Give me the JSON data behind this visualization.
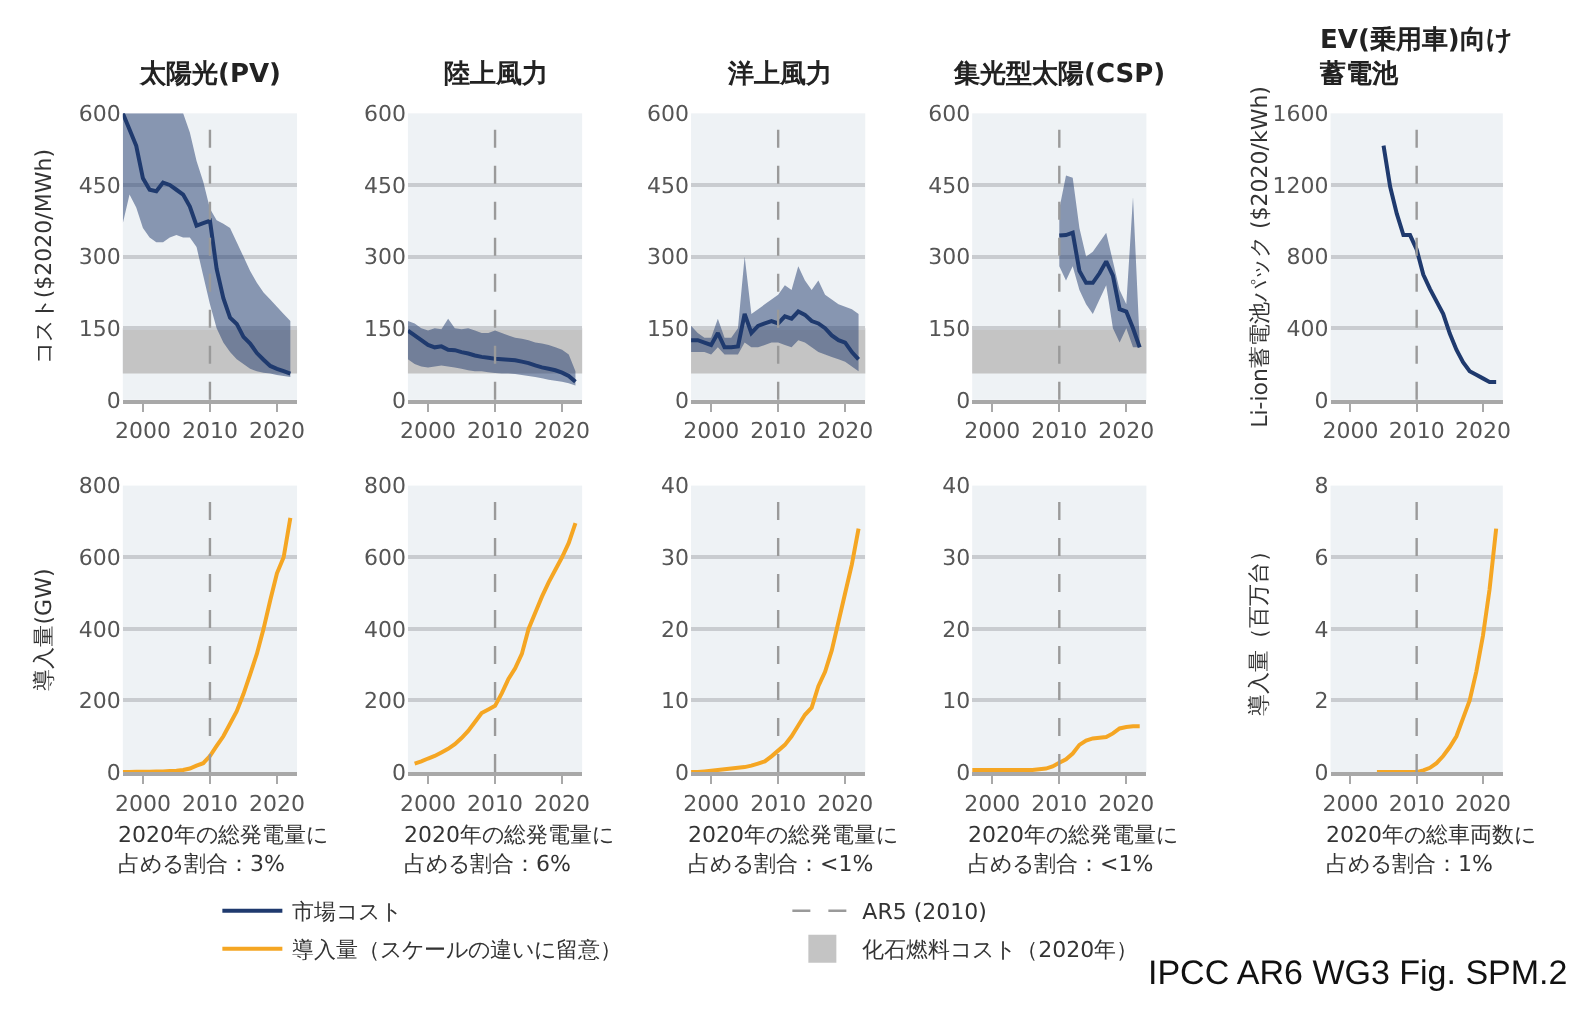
{
  "chart_data": [
    {
      "type": "line",
      "title": "太陽光(PV)",
      "ylabel": "コスト($2020/MWh)",
      "legend": "bottom",
      "grid": "y",
      "xlim": [
        1997,
        2023
      ],
      "xticks": [
        2000,
        2010,
        2020
      ],
      "ylim": [
        0,
        600
      ],
      "yticks": [
        0,
        150,
        300,
        450,
        600
      ],
      "x": [
        1997,
        1998,
        1999,
        2000,
        2001,
        2002,
        2003,
        2004,
        2005,
        2006,
        2007,
        2008,
        2009,
        2010,
        2011,
        2012,
        2013,
        2014,
        2015,
        2016,
        2017,
        2018,
        2019,
        2020,
        2021,
        2022
      ],
      "series": [
        {
          "name": "市場コスト",
          "color": "#1f3a6e",
          "values": [
            600,
            566,
            532,
            464,
            440,
            437,
            455,
            450,
            440,
            430,
            405,
            365,
            370,
            375,
            274,
            213,
            172,
            159,
            132,
            118,
            98,
            84,
            71,
            65,
            60,
            55
          ],
          "upper": [
            600,
            600,
            600,
            600,
            600,
            600,
            600,
            600,
            600,
            600,
            560,
            500,
            457,
            400,
            376,
            369,
            360,
            330,
            300,
            270,
            245,
            225,
            210,
            195,
            180,
            165
          ],
          "lower": [
            370,
            430,
            403,
            360,
            340,
            330,
            330,
            340,
            345,
            340,
            340,
            320,
            260,
            200,
            150,
            120,
            100,
            85,
            75,
            65,
            60,
            57,
            55,
            52,
            50,
            48
          ]
        }
      ],
      "bands": [
        {
          "axis": "y",
          "from": 55,
          "to": 150,
          "label": "化石燃料コスト（2020年）",
          "color": "#c4c4c4"
        }
      ],
      "ref_lines": [
        {
          "axis": "x",
          "value": 2010,
          "label": "AR5 (2010)",
          "color": "#9a9a9a",
          "line_style": "dashed"
        }
      ]
    },
    {
      "type": "line",
      "title": "陸上風力",
      "grid": "y",
      "xlim": [
        1997,
        2023
      ],
      "xticks": [
        2000,
        2010,
        2020
      ],
      "ylim": [
        0,
        600
      ],
      "yticks": [
        0,
        150,
        300,
        450,
        600
      ],
      "x": [
        1997,
        1998,
        1999,
        2000,
        2001,
        2002,
        2003,
        2004,
        2005,
        2006,
        2007,
        2008,
        2009,
        2010,
        2011,
        2012,
        2013,
        2014,
        2015,
        2016,
        2017,
        2018,
        2019,
        2020,
        2021,
        2022
      ],
      "series": [
        {
          "color": "#1f3a6e",
          "values": [
            145,
            135,
            125,
            115,
            110,
            112,
            105,
            104,
            100,
            97,
            93,
            90,
            88,
            86,
            85,
            84,
            83,
            80,
            77,
            72,
            68,
            65,
            62,
            57,
            50,
            38
          ],
          "upper": [
            165,
            160,
            150,
            145,
            150,
            148,
            170,
            150,
            148,
            150,
            145,
            140,
            140,
            145,
            140,
            135,
            130,
            128,
            125,
            120,
            118,
            115,
            110,
            105,
            95,
            60
          ],
          "lower": [
            85,
            75,
            70,
            68,
            70,
            72,
            70,
            68,
            65,
            62,
            60,
            60,
            58,
            56,
            55,
            55,
            54,
            52,
            50,
            48,
            45,
            42,
            40,
            38,
            35,
            30
          ]
        }
      ],
      "bands": [
        {
          "axis": "y",
          "from": 55,
          "to": 150,
          "color": "#c4c4c4"
        }
      ],
      "ref_lines": [
        {
          "axis": "x",
          "value": 2010,
          "color": "#9a9a9a",
          "line_style": "dashed"
        }
      ]
    },
    {
      "type": "line",
      "title": "洋上風力",
      "grid": "y",
      "xlim": [
        1997,
        2023
      ],
      "xticks": [
        2000,
        2010,
        2020
      ],
      "ylim": [
        0,
        600
      ],
      "yticks": [
        0,
        150,
        300,
        450,
        600
      ],
      "x": [
        1997,
        1998,
        1999,
        2000,
        2001,
        2002,
        2003,
        2004,
        2005,
        2006,
        2007,
        2008,
        2009,
        2010,
        2011,
        2012,
        2013,
        2014,
        2015,
        2016,
        2017,
        2018,
        2019,
        2020,
        2021,
        2022
      ],
      "series": [
        {
          "color": "#1f3a6e",
          "values": [
            125,
            125,
            120,
            115,
            140,
            110,
            110,
            112,
            180,
            140,
            155,
            160,
            165,
            160,
            175,
            170,
            185,
            178,
            165,
            160,
            150,
            135,
            125,
            120,
            100,
            85
          ],
          "upper": [
            155,
            140,
            130,
            130,
            170,
            130,
            130,
            150,
            300,
            180,
            190,
            200,
            210,
            220,
            240,
            230,
            280,
            250,
            230,
            250,
            220,
            210,
            200,
            195,
            190,
            180
          ],
          "lower": [
            100,
            100,
            100,
            95,
            110,
            95,
            95,
            95,
            120,
            110,
            110,
            115,
            120,
            120,
            115,
            110,
            125,
            120,
            110,
            100,
            95,
            90,
            85,
            80,
            70,
            60
          ]
        }
      ],
      "bands": [
        {
          "axis": "y",
          "from": 55,
          "to": 150,
          "color": "#c4c4c4"
        }
      ],
      "ref_lines": [
        {
          "axis": "x",
          "value": 2010,
          "color": "#9a9a9a",
          "line_style": "dashed"
        }
      ]
    },
    {
      "type": "line",
      "title": "集光型太陽(CSP)",
      "grid": "y",
      "xlim": [
        1997,
        2023
      ],
      "xticks": [
        2000,
        2010,
        2020
      ],
      "ylim": [
        0,
        600
      ],
      "yticks": [
        0,
        150,
        300,
        450,
        600
      ],
      "x": [
        2010,
        2011,
        2012,
        2013,
        2014,
        2015,
        2016,
        2017,
        2018,
        2019,
        2020,
        2021,
        2022
      ],
      "series": [
        {
          "color": "#1f3a6e",
          "values": [
            344,
            345,
            350,
            270,
            245,
            245,
            265,
            290,
            260,
            190,
            185,
            150,
            110
          ],
          "upper": [
            400,
            470,
            465,
            360,
            300,
            310,
            330,
            350,
            290,
            230,
            200,
            425,
            120
          ],
          "lower": [
            280,
            250,
            280,
            230,
            200,
            180,
            210,
            240,
            150,
            120,
            150,
            110,
            110
          ]
        }
      ],
      "bands": [
        {
          "axis": "y",
          "from": 55,
          "to": 150,
          "color": "#c4c4c4"
        }
      ],
      "ref_lines": [
        {
          "axis": "x",
          "value": 2010,
          "color": "#9a9a9a",
          "line_style": "dashed"
        }
      ]
    },
    {
      "type": "line",
      "title": "EV(乗用車)向け蓄電池",
      "ylabel": "Li-ion蓄電池パック ($2020/kWh)",
      "grid": "y",
      "xlim": [
        1997,
        2023
      ],
      "xticks": [
        2000,
        2010,
        2020
      ],
      "ylim": [
        0,
        1600
      ],
      "yticks": [
        0,
        400,
        800,
        1200,
        1600
      ],
      "x": [
        2005,
        2006,
        2007,
        2008,
        2009,
        2010,
        2011,
        2012,
        2013,
        2014,
        2015,
        2016,
        2017,
        2018,
        2019,
        2020,
        2021,
        2022
      ],
      "series": [
        {
          "color": "#1f3a6e",
          "values": [
            1420,
            1190,
            1040,
            920,
            920,
            840,
            700,
            620,
            550,
            480,
            370,
            280,
            210,
            160,
            140,
            120,
            100,
            100
          ]
        }
      ],
      "ref_lines": [
        {
          "axis": "x",
          "value": 2010,
          "color": "#9a9a9a",
          "line_style": "dashed"
        }
      ]
    },
    {
      "type": "line",
      "ylabel": "導入量(GW)",
      "xlabel": "2020年の総発電量に占める割合：3%",
      "grid": "y",
      "xlim": [
        1997,
        2023
      ],
      "xticks": [
        2000,
        2010,
        2020
      ],
      "ylim": [
        0,
        800
      ],
      "yticks": [
        0,
        200,
        400,
        600,
        800
      ],
      "x": [
        1997,
        1998,
        1999,
        2000,
        2001,
        2002,
        2003,
        2004,
        2005,
        2006,
        2007,
        2008,
        2009,
        2010,
        2011,
        2012,
        2013,
        2014,
        2015,
        2016,
        2017,
        2018,
        2019,
        2020,
        2021,
        2022
      ],
      "series": [
        {
          "name": "導入量（スケールの違いに留意）",
          "color": "#f5a623",
          "values": [
            0,
            0,
            1,
            1,
            1,
            2,
            2,
            3,
            4,
            6,
            10,
            18,
            25,
            45,
            73,
            100,
            135,
            170,
            218,
            273,
            330,
            400,
            480,
            555,
            600,
            710
          ]
        }
      ],
      "ref_lines": [
        {
          "axis": "x",
          "value": 2010,
          "color": "#9a9a9a",
          "line_style": "dashed"
        }
      ]
    },
    {
      "type": "line",
      "xlabel": "2020年の総発電量に占める割合：6%",
      "grid": "y",
      "xlim": [
        1997,
        2023
      ],
      "xticks": [
        2000,
        2010,
        2020
      ],
      "ylim": [
        0,
        800
      ],
      "yticks": [
        0,
        200,
        400,
        600,
        800
      ],
      "x": [
        1998,
        1999,
        2000,
        2001,
        2002,
        2003,
        2004,
        2005,
        2006,
        2007,
        2008,
        2009,
        2010,
        2011,
        2012,
        2013,
        2014,
        2015,
        2016,
        2017,
        2018,
        2019,
        2020,
        2021,
        2022
      ],
      "series": [
        {
          "color": "#f5a623",
          "values": [
            24,
            30,
            38,
            45,
            55,
            65,
            78,
            95,
            115,
            140,
            165,
            175,
            185,
            220,
            260,
            290,
            330,
            400,
            445,
            490,
            530,
            565,
            600,
            640,
            695
          ]
        }
      ],
      "ref_lines": [
        {
          "axis": "x",
          "value": 2010,
          "color": "#9a9a9a",
          "line_style": "dashed"
        }
      ]
    },
    {
      "type": "line",
      "xlabel": "2020年の総発電量に占める割合：<1%",
      "grid": "y",
      "xlim": [
        1997,
        2023
      ],
      "xticks": [
        2000,
        2010,
        2020
      ],
      "ylim": [
        0,
        40
      ],
      "yticks": [
        0,
        10,
        20,
        30,
        40
      ],
      "x": [
        1997,
        1998,
        1999,
        2000,
        2001,
        2002,
        2003,
        2004,
        2005,
        2006,
        2007,
        2008,
        2009,
        2010,
        2011,
        2012,
        2013,
        2014,
        2015,
        2016,
        2017,
        2018,
        2019,
        2020,
        2021,
        2022
      ],
      "series": [
        {
          "color": "#f5a623",
          "values": [
            0,
            0,
            0.1,
            0.2,
            0.3,
            0.4,
            0.5,
            0.6,
            0.7,
            0.9,
            1.2,
            1.5,
            2.2,
            3,
            3.8,
            5,
            6.5,
            8,
            9,
            12,
            14,
            17,
            21,
            25,
            29,
            34
          ]
        }
      ],
      "ref_lines": [
        {
          "axis": "x",
          "value": 2010,
          "color": "#9a9a9a",
          "line_style": "dashed"
        }
      ]
    },
    {
      "type": "line",
      "xlabel": "2020年の総発電量に占める割合：<1%",
      "grid": "y",
      "xlim": [
        1997,
        2023
      ],
      "xticks": [
        2000,
        2010,
        2020
      ],
      "ylim": [
        0,
        40
      ],
      "yticks": [
        0,
        10,
        20,
        30,
        40
      ],
      "x": [
        1997,
        1998,
        1999,
        2000,
        2001,
        2002,
        2003,
        2004,
        2005,
        2006,
        2007,
        2008,
        2009,
        2010,
        2011,
        2012,
        2013,
        2014,
        2015,
        2016,
        2017,
        2018,
        2019,
        2020,
        2021,
        2022
      ],
      "series": [
        {
          "color": "#f5a623",
          "values": [
            0.3,
            0.3,
            0.3,
            0.3,
            0.3,
            0.3,
            0.3,
            0.3,
            0.3,
            0.3,
            0.4,
            0.5,
            0.8,
            1.3,
            1.8,
            2.6,
            3.8,
            4.4,
            4.7,
            4.8,
            4.9,
            5.4,
            6.1,
            6.3,
            6.4,
            6.4
          ]
        }
      ],
      "ref_lines": [
        {
          "axis": "x",
          "value": 2010,
          "color": "#9a9a9a",
          "line_style": "dashed"
        }
      ]
    },
    {
      "type": "line",
      "ylabel": "導入量（百万台）",
      "xlabel": "2020年の総車両数に占める割合：1%",
      "grid": "y",
      "xlim": [
        1997,
        2023
      ],
      "xticks": [
        2000,
        2010,
        2020
      ],
      "ylim": [
        0,
        8
      ],
      "yticks": [
        0,
        2,
        4,
        6,
        8
      ],
      "x": [
        2004,
        2005,
        2006,
        2007,
        2008,
        2009,
        2010,
        2011,
        2012,
        2013,
        2014,
        2015,
        2016,
        2017,
        2018,
        2019,
        2020,
        2021,
        2022
      ],
      "series": [
        {
          "color": "#f5a623",
          "values": [
            0,
            0,
            0,
            0,
            0,
            0,
            0,
            0.05,
            0.12,
            0.25,
            0.45,
            0.7,
            1.0,
            1.5,
            2.0,
            2.8,
            3.8,
            5.1,
            6.8
          ]
        }
      ],
      "ref_lines": [
        {
          "axis": "x",
          "value": 2010,
          "color": "#9a9a9a",
          "line_style": "dashed"
        }
      ],
      "annotations": [
        "IPCC AR6 WG3 Fig. SPM.2"
      ]
    }
  ]
}
